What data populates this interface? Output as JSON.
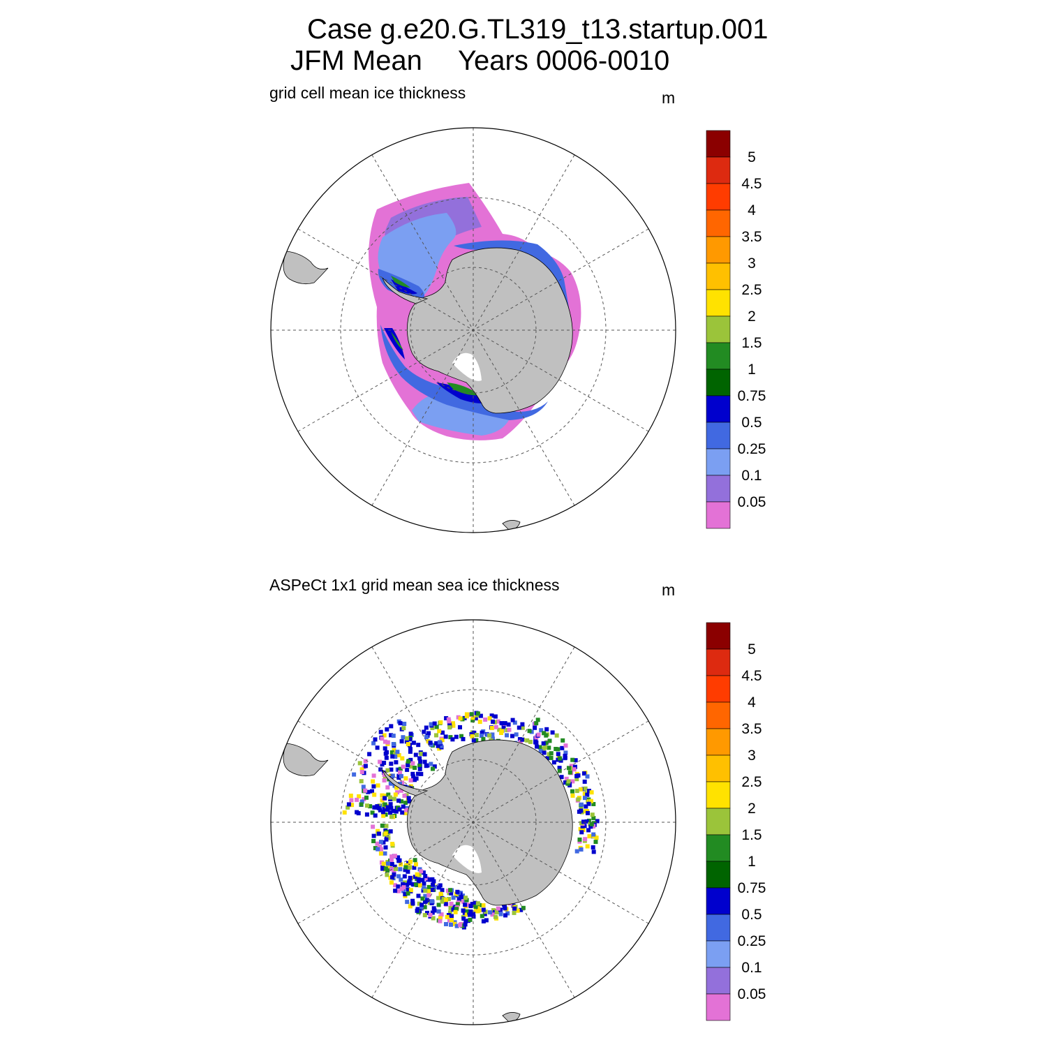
{
  "title": {
    "line1": "Case g.e20.G.TL319_t13.startup.001",
    "line2_left": "JFM Mean",
    "line2_right": "Years 0006-0010"
  },
  "panels": [
    {
      "subtitle": "grid cell mean ice thickness",
      "units": "m"
    },
    {
      "subtitle": "ASPeCt 1x1 grid mean sea ice thickness",
      "units": "m"
    }
  ],
  "colorbar": {
    "labels": [
      "5",
      "4.5",
      "4",
      "3.5",
      "3",
      "2.5",
      "2",
      "1.5",
      "1",
      "0.75",
      "0.5",
      "0.25",
      "0.1",
      "0.05"
    ],
    "colors": [
      "#8b0000",
      "#dd2a10",
      "#ff3c00",
      "#ff6600",
      "#ff9900",
      "#ffc000",
      "#ffe200",
      "#9bc43a",
      "#228b22",
      "#006400",
      "#0000cd",
      "#4169e1",
      "#7b9ff2",
      "#9370db",
      "#e372d6"
    ]
  },
  "colors": {
    "land": "#c0c0c0",
    "coastline": "#000000",
    "grid": "#555555"
  },
  "map_legend_colors": {
    "model_outer": "#e372d6",
    "model_thin": "#9370db",
    "model_mid": "#7b9ff2",
    "model_blue": "#4169e1",
    "model_dark": "#0000cd",
    "model_green": "#006400",
    "model_lgreen": "#228b22",
    "obs_yellow": "#ffe200",
    "obs_green": "#228b22",
    "obs_blue": "#0000cd"
  }
}
